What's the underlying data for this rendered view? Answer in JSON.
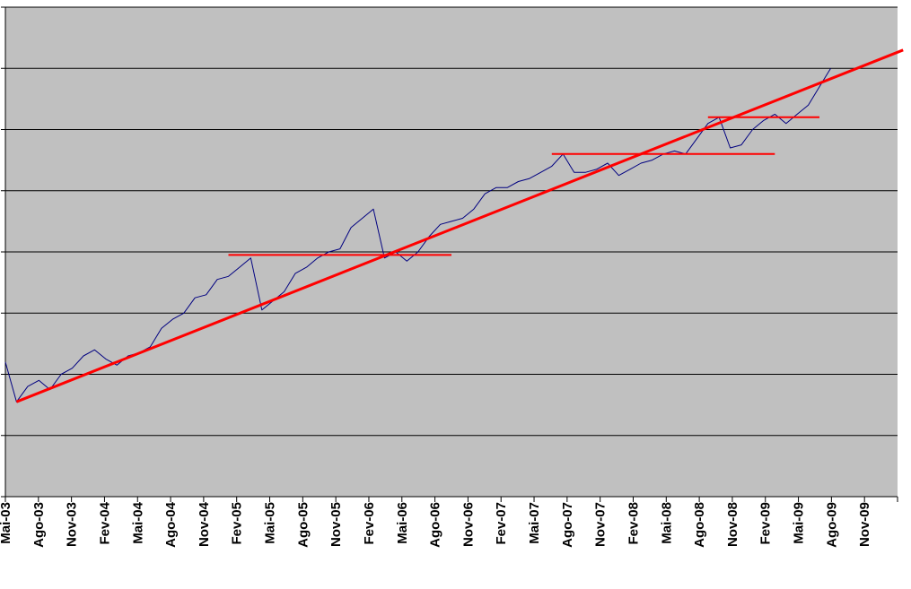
{
  "chart_data": {
    "type": "line",
    "title": "",
    "xlabel": "",
    "ylabel": "",
    "x_tick_labels": [
      "Mai-03",
      "Ago-03",
      "Nov-03",
      "Fev-04",
      "Mai-04",
      "Ago-04",
      "Nov-04",
      "Fev-05",
      "Mai-05",
      "Ago-05",
      "Nov-05",
      "Fev-06",
      "Mai-06",
      "Ago-06",
      "Nov-06",
      "Fev-07",
      "Mai-07",
      "Ago-07",
      "Nov-07",
      "Fev-08",
      "Mai-08",
      "Ago-08",
      "Nov-08",
      "Fev-09",
      "Mai-09",
      "Ago-09",
      "Nov-09"
    ],
    "xlim": [
      0,
      80
    ],
    "ylim": [
      0,
      8
    ],
    "y_ticks": [
      0,
      1,
      2,
      3,
      4,
      5,
      6,
      7,
      8
    ],
    "y_tick_labels_visible": false,
    "grid": "horizontal",
    "plot_background": "#c0c0c0",
    "series": [
      {
        "color": "#000080",
        "x": [
          0,
          1,
          2,
          3,
          4,
          5,
          6,
          7,
          8,
          9,
          10,
          11,
          12,
          13,
          14,
          15,
          16,
          17,
          18,
          19,
          20,
          21,
          22,
          23,
          24,
          25,
          26,
          27,
          28,
          29,
          30,
          31,
          32,
          33,
          34,
          35,
          36,
          37,
          38,
          39,
          40,
          41,
          42,
          43,
          44,
          45,
          46,
          47,
          48,
          49,
          50,
          51,
          52,
          53,
          54,
          55,
          56,
          57,
          58,
          59,
          60,
          61,
          62,
          63,
          64,
          65,
          66,
          67,
          68,
          69,
          70,
          71,
          72,
          73,
          74
        ],
        "values": [
          2.2,
          1.55,
          1.8,
          1.9,
          1.75,
          2.0,
          2.1,
          2.3,
          2.4,
          2.25,
          2.15,
          2.3,
          2.35,
          2.45,
          2.75,
          2.9,
          3.0,
          3.25,
          3.3,
          3.55,
          3.6,
          3.75,
          3.9,
          3.05,
          3.2,
          3.35,
          3.65,
          3.75,
          3.9,
          4.0,
          4.05,
          4.4,
          4.55,
          4.7,
          3.9,
          4.0,
          3.85,
          4.0,
          4.25,
          4.45,
          4.5,
          4.55,
          4.7,
          4.95,
          5.05,
          5.05,
          5.15,
          5.2,
          5.3,
          5.4,
          5.6,
          5.3,
          5.3,
          5.35,
          5.45,
          5.25,
          5.35,
          5.45,
          5.5,
          5.6,
          5.65,
          5.6,
          5.85,
          6.1,
          6.2,
          5.7,
          5.75,
          6.0,
          6.15,
          6.25,
          6.1,
          6.25,
          6.4,
          6.7,
          7.0
        ]
      },
      {
        "color": "#ff0000",
        "x": [
          1,
          80.5
        ],
        "values": [
          1.55,
          7.3
        ]
      },
      {
        "color": "#ff0000",
        "x": [
          20,
          40
        ],
        "values": [
          3.95,
          3.95
        ]
      },
      {
        "color": "#ff0000",
        "x": [
          49,
          69
        ],
        "values": [
          5.6,
          5.6
        ]
      },
      {
        "color": "#ff0000",
        "x": [
          63,
          73
        ],
        "values": [
          6.2,
          6.2
        ]
      }
    ]
  }
}
